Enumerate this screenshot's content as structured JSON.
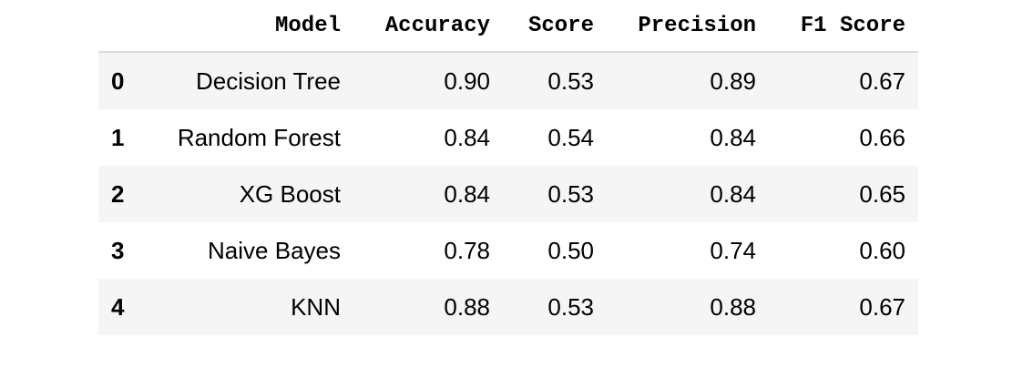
{
  "table": {
    "columns": [
      "Model",
      "Accuracy",
      "Score",
      "Precision",
      "F1 Score"
    ],
    "rows": [
      {
        "index": "0",
        "model": "Decision Tree",
        "accuracy": "0.90",
        "score": "0.53",
        "precision": "0.89",
        "f1": "0.67"
      },
      {
        "index": "1",
        "model": "Random Forest",
        "accuracy": "0.84",
        "score": "0.54",
        "precision": "0.84",
        "f1": "0.66"
      },
      {
        "index": "2",
        "model": "XG Boost",
        "accuracy": "0.84",
        "score": "0.53",
        "precision": "0.84",
        "f1": "0.65"
      },
      {
        "index": "3",
        "model": "Naive Bayes",
        "accuracy": "0.78",
        "score": "0.50",
        "precision": "0.74",
        "f1": "0.60"
      },
      {
        "index": "4",
        "model": "KNN",
        "accuracy": "0.88",
        "score": "0.53",
        "precision": "0.88",
        "f1": "0.67"
      }
    ]
  },
  "colors": {
    "stripe": "#f5f5f5",
    "header_rule": "#dcdcdc",
    "text": "#000000"
  }
}
